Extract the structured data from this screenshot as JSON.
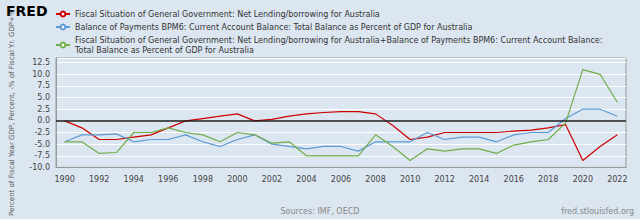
{
  "chart_data": {
    "type": "line",
    "ylabel": "Percent of Fiscal Year GDP, Percent, -% of Fiscal Yr. GDP+%",
    "annotations": [
      "FRED",
      "Sources: IMF, OECD",
      "fred.stlouisfed.org"
    ],
    "x": [
      1990,
      1991,
      1992,
      1993,
      1994,
      1995,
      1996,
      1997,
      1998,
      1999,
      2000,
      2001,
      2002,
      2003,
      2004,
      2005,
      2006,
      2007,
      2008,
      2009,
      2010,
      2011,
      2012,
      2013,
      2014,
      2015,
      2016,
      2017,
      2018,
      2019,
      2020,
      2021,
      2022
    ],
    "series": [
      {
        "name": "Fiscal Situation of General Government: Net Lending/borrowing for Australia",
        "color": "#cc0000",
        "values": [
          0.0,
          -1.5,
          -4.0,
          -4.0,
          -3.5,
          -3.0,
          -1.5,
          0.0,
          0.5,
          1.0,
          1.5,
          0.0,
          0.3,
          1.0,
          1.5,
          1.8,
          2.0,
          2.0,
          1.5,
          -1.0,
          -4.0,
          -3.5,
          -2.5,
          -2.5,
          -2.5,
          -2.5,
          -2.2,
          -2.0,
          -1.5,
          -0.8,
          -8.5,
          -5.5,
          -3.0
        ]
      },
      {
        "name": "Balance of Payments BPM6: Current Account Balance: Total Balance as Percent of GDP for Australia",
        "color": "#5b9bd5",
        "values": [
          -4.5,
          -3.0,
          -3.0,
          -2.8,
          -4.5,
          -4.0,
          -4.0,
          -3.0,
          -4.5,
          -5.5,
          -4.0,
          -3.0,
          -5.0,
          -5.5,
          -6.0,
          -5.5,
          -5.5,
          -6.5,
          -4.5,
          -4.5,
          -4.5,
          -2.5,
          -4.0,
          -3.5,
          -3.5,
          -4.5,
          -3.0,
          -2.5,
          -2.5,
          0.5,
          2.5,
          2.5,
          1.0
        ]
      },
      {
        "name": "Fiscal Situation of General Government: Net Lending/borrowing for Australia+Balance of Payments BPM6: Current Account Balance: Total Balance as Percent of GDP for Australia",
        "color": "#70ad47",
        "values": [
          -4.5,
          -4.5,
          -7.0,
          -6.8,
          -2.5,
          -2.5,
          -1.5,
          -2.5,
          -3.0,
          -4.5,
          -2.5,
          -3.0,
          -4.8,
          -4.5,
          -7.5,
          -7.5,
          -7.5,
          -7.5,
          -3.0,
          -5.5,
          -8.5,
          -6.0,
          -6.5,
          -6.0,
          -6.0,
          -7.0,
          -5.2,
          -4.5,
          -4.0,
          -0.5,
          11.0,
          10.0,
          4.0
        ]
      }
    ],
    "xlim": [
      1989.5,
      2022.5
    ],
    "xticks": [
      1990,
      1992,
      1994,
      1996,
      1998,
      2000,
      2002,
      2004,
      2006,
      2008,
      2010,
      2012,
      2014,
      2016,
      2018,
      2020,
      2022
    ],
    "ylim": [
      -10.0,
      13.5
    ],
    "yticks": [
      {
        "value": -10.0,
        "label": "-10.0"
      },
      -7.5,
      {
        "value": -5.0,
        "label": "-5.0"
      },
      -2.5,
      {
        "value": 0.0,
        "label": "0.0"
      },
      2.5,
      {
        "value": 5.0,
        "label": "5.0"
      },
      7.5,
      {
        "value": 10.0,
        "label": "10.0"
      },
      12.5
    ],
    "grid": true,
    "legend": "top"
  }
}
